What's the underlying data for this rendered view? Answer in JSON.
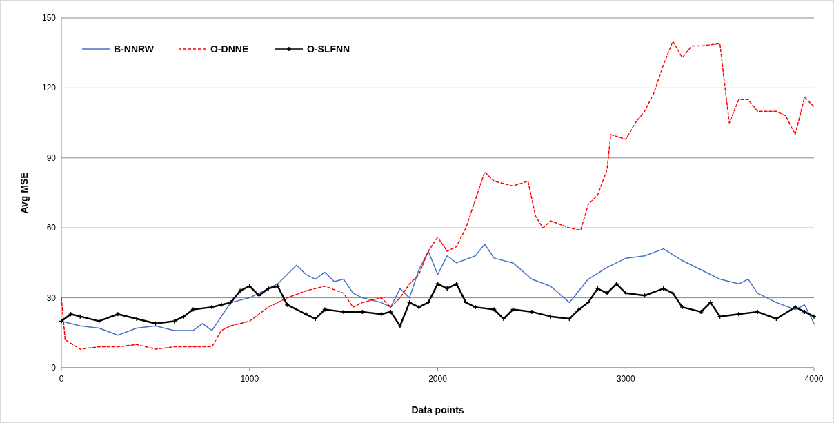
{
  "chart_data": {
    "type": "line",
    "xlabel": "Data points",
    "ylabel": "Avg MSE",
    "xlim": [
      0,
      4000
    ],
    "ylim": [
      0,
      150
    ],
    "xticks": [
      0,
      1000,
      2000,
      3000,
      4000
    ],
    "yticks": [
      0,
      30,
      60,
      90,
      120,
      150
    ],
    "grid": "y",
    "legend": "top left",
    "series": [
      {
        "name": "B-NNRW",
        "color": "#4472c4",
        "line_style": "solid",
        "marker": "none",
        "x": [
          0,
          100,
          200,
          300,
          400,
          500,
          600,
          700,
          750,
          800,
          850,
          900,
          1000,
          1100,
          1150,
          1200,
          1250,
          1300,
          1350,
          1400,
          1450,
          1500,
          1550,
          1600,
          1700,
          1750,
          1800,
          1850,
          1900,
          1950,
          2000,
          2050,
          2100,
          2200,
          2250,
          2300,
          2400,
          2500,
          2600,
          2700,
          2750,
          2800,
          2900,
          3000,
          3100,
          3200,
          3300,
          3400,
          3500,
          3600,
          3650,
          3700,
          3800,
          3900,
          3950,
          4000
        ],
        "values": [
          20,
          18,
          17,
          14,
          17,
          18,
          16,
          16,
          19,
          16,
          22,
          28,
          30,
          34,
          36,
          40,
          44,
          40,
          38,
          41,
          37,
          38,
          32,
          30,
          28,
          26,
          34,
          30,
          42,
          50,
          40,
          48,
          45,
          48,
          53,
          47,
          45,
          38,
          35,
          28,
          33,
          38,
          43,
          47,
          48,
          51,
          46,
          42,
          38,
          36,
          38,
          32,
          28,
          25,
          27,
          19
        ]
      },
      {
        "name": "O-DNNE",
        "color": "#ff0000",
        "line_style": "dashed",
        "marker": "none",
        "x": [
          0,
          20,
          100,
          200,
          300,
          400,
          500,
          600,
          700,
          800,
          850,
          900,
          1000,
          1100,
          1200,
          1300,
          1400,
          1500,
          1550,
          1600,
          1700,
          1750,
          1800,
          1850,
          1900,
          1950,
          2000,
          2050,
          2100,
          2150,
          2200,
          2250,
          2300,
          2400,
          2480,
          2520,
          2560,
          2600,
          2700,
          2760,
          2800,
          2850,
          2900,
          2920,
          3000,
          3050,
          3100,
          3150,
          3200,
          3250,
          3300,
          3350,
          3400,
          3500,
          3520,
          3550,
          3600,
          3650,
          3700,
          3800,
          3850,
          3900,
          3950,
          4000
        ],
        "values": [
          30,
          12,
          8,
          9,
          9,
          10,
          8,
          9,
          9,
          9,
          16,
          18,
          20,
          26,
          30,
          33,
          35,
          32,
          26,
          28,
          30,
          26,
          30,
          36,
          40,
          50,
          56,
          50,
          52,
          60,
          72,
          84,
          80,
          78,
          80,
          65,
          60,
          63,
          60,
          59,
          70,
          74,
          85,
          100,
          98,
          105,
          110,
          118,
          130,
          140,
          133,
          138,
          138,
          139,
          125,
          105,
          115,
          115,
          110,
          110,
          108,
          100,
          116,
          112
        ]
      },
      {
        "name": "O-SLFNN",
        "color": "#000000",
        "line_style": "solid",
        "marker": "cross",
        "x": [
          0,
          50,
          100,
          200,
          300,
          400,
          500,
          600,
          650,
          700,
          800,
          850,
          900,
          950,
          1000,
          1050,
          1100,
          1150,
          1200,
          1300,
          1350,
          1400,
          1500,
          1600,
          1700,
          1750,
          1800,
          1850,
          1900,
          1950,
          2000,
          2050,
          2100,
          2150,
          2200,
          2300,
          2350,
          2400,
          2500,
          2600,
          2700,
          2750,
          2800,
          2850,
          2900,
          2950,
          3000,
          3100,
          3200,
          3250,
          3300,
          3400,
          3450,
          3500,
          3600,
          3700,
          3800,
          3900,
          3950,
          4000
        ],
        "values": [
          20,
          23,
          22,
          20,
          23,
          21,
          19,
          20,
          22,
          25,
          26,
          27,
          28,
          33,
          35,
          31,
          34,
          35,
          27,
          23,
          21,
          25,
          24,
          24,
          23,
          24,
          18,
          28,
          26,
          28,
          36,
          34,
          36,
          28,
          26,
          25,
          21,
          25,
          24,
          22,
          21,
          25,
          28,
          34,
          32,
          36,
          32,
          31,
          34,
          32,
          26,
          24,
          28,
          22,
          23,
          24,
          21,
          26,
          24,
          22
        ]
      }
    ]
  }
}
